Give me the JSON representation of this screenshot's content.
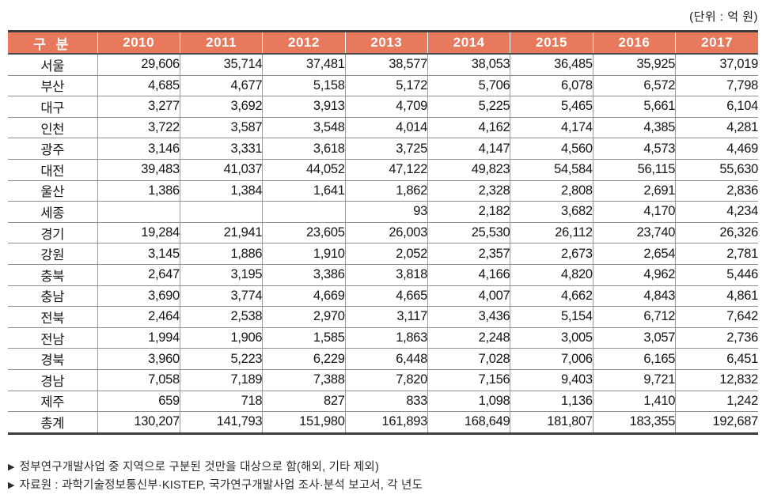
{
  "unit_label": "(단위 : 억 원)",
  "colors": {
    "header_bg": "#e8795c",
    "header_text": "#ffffff",
    "outer_border": "#3d3d3d",
    "row_line": "#8d8d8d",
    "col_line": "#9a9a9a"
  },
  "table": {
    "header": {
      "label": "구 분",
      "years": [
        "2010",
        "2011",
        "2012",
        "2013",
        "2014",
        "2015",
        "2016",
        "2017"
      ]
    },
    "rows": [
      {
        "region": "서울",
        "values": [
          "29,606",
          "35,714",
          "37,481",
          "38,577",
          "38,053",
          "36,485",
          "35,925",
          "37,019"
        ]
      },
      {
        "region": "부산",
        "values": [
          "4,685",
          "4,677",
          "5,158",
          "5,172",
          "5,706",
          "6,078",
          "6,572",
          "7,798"
        ]
      },
      {
        "region": "대구",
        "values": [
          "3,277",
          "3,692",
          "3,913",
          "4,709",
          "5,225",
          "5,465",
          "5,661",
          "6,104"
        ]
      },
      {
        "region": "인천",
        "values": [
          "3,722",
          "3,587",
          "3,548",
          "4,014",
          "4,162",
          "4,174",
          "4,385",
          "4,281"
        ]
      },
      {
        "region": "광주",
        "values": [
          "3,146",
          "3,331",
          "3,618",
          "3,725",
          "4,147",
          "4,560",
          "4,573",
          "4,469"
        ]
      },
      {
        "region": "대전",
        "values": [
          "39,483",
          "41,037",
          "44,052",
          "47,122",
          "49,823",
          "54,584",
          "56,115",
          "55,630"
        ]
      },
      {
        "region": "울산",
        "values": [
          "1,386",
          "1,384",
          "1,641",
          "1,862",
          "2,328",
          "2,808",
          "2,691",
          "2,836"
        ]
      },
      {
        "region": "세종",
        "values": [
          "",
          "",
          "",
          "93",
          "2,182",
          "3,682",
          "4,170",
          "4,234"
        ]
      },
      {
        "region": "경기",
        "values": [
          "19,284",
          "21,941",
          "23,605",
          "26,003",
          "25,530",
          "26,112",
          "23,740",
          "26,326"
        ]
      },
      {
        "region": "강원",
        "values": [
          "3,145",
          "1,886",
          "1,910",
          "2,052",
          "2,357",
          "2,673",
          "2,654",
          "2,781"
        ]
      },
      {
        "region": "충북",
        "values": [
          "2,647",
          "3,195",
          "3,386",
          "3,818",
          "4,166",
          "4,820",
          "4,962",
          "5,446"
        ]
      },
      {
        "region": "충남",
        "values": [
          "3,690",
          "3,774",
          "4,669",
          "4,665",
          "4,007",
          "4,662",
          "4,843",
          "4,861"
        ]
      },
      {
        "region": "전북",
        "values": [
          "2,464",
          "2,538",
          "2,970",
          "3,117",
          "3,436",
          "5,154",
          "6,712",
          "7,642"
        ]
      },
      {
        "region": "전남",
        "values": [
          "1,994",
          "1,906",
          "1,585",
          "1,863",
          "2,248",
          "3,005",
          "3,057",
          "2,736"
        ]
      },
      {
        "region": "경북",
        "values": [
          "3,960",
          "5,223",
          "6,229",
          "6,448",
          "7,028",
          "7,006",
          "6,165",
          "6,451"
        ]
      },
      {
        "region": "경남",
        "values": [
          "7,058",
          "7,189",
          "7,388",
          "7,820",
          "7,156",
          "9,403",
          "9,721",
          "12,832"
        ]
      },
      {
        "region": "제주",
        "values": [
          "659",
          "718",
          "827",
          "833",
          "1,098",
          "1,136",
          "1,410",
          "1,242"
        ]
      },
      {
        "region": "총계",
        "values": [
          "130,207",
          "141,793",
          "151,980",
          "161,893",
          "168,649",
          "181,807",
          "183,355",
          "192,687"
        ]
      }
    ]
  },
  "footnotes": [
    {
      "bullet": "▶",
      "text": "정부연구개발사업 중 지역으로 구분된 것만을 대상으로 함(해외, 기타 제외)"
    },
    {
      "bullet": "▶",
      "text": "자료원 : 과학기술정보통신부·KISTEP, 국가연구개발사업 조사·분석 보고서, 각 년도"
    }
  ]
}
